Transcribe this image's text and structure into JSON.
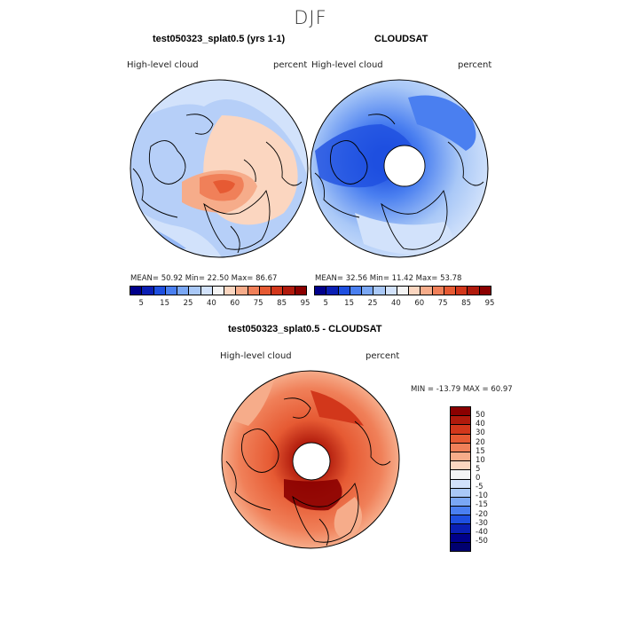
{
  "season": "DJF",
  "panels": [
    {
      "title": "test050323_splat0.5 (yrs 1-1)",
      "variable": "High-level cloud",
      "units": "percent",
      "stats": "MEAN=  50.92  Min=  22.50  Max=  86.67"
    },
    {
      "title": "CLOUDSAT",
      "variable": "High-level cloud",
      "units": "percent",
      "stats": "MEAN=  32.56  Min=  11.42  Max=  53.78"
    },
    {
      "title": "test050323_splat0.5 - CLOUDSAT",
      "variable": "High-level cloud",
      "units": "percent",
      "stats": "MIN = -13.79 MAX =  60.97"
    }
  ],
  "colorbar_abs": {
    "labels": [
      "5",
      "15",
      "25",
      "40",
      "60",
      "75",
      "85",
      "95"
    ],
    "colors": [
      "#00008b",
      "#0a1fb4",
      "#1e4fe0",
      "#4a7ff0",
      "#7aa7f4",
      "#a9c8f7",
      "#d2e2fb",
      "#f4f4f4",
      "#fbd6c0",
      "#f6ac8a",
      "#f08059",
      "#e65a33",
      "#d2371b",
      "#b01a0c",
      "#8b0000"
    ]
  },
  "colorbar_diff": {
    "labels": [
      "50",
      "40",
      "30",
      "20",
      "15",
      "10",
      "5",
      "0",
      "-5",
      "-10",
      "-15",
      "-20",
      "-30",
      "-40",
      "-50"
    ],
    "colors": [
      "#8b0000",
      "#b01a0c",
      "#d2371b",
      "#e65a33",
      "#f08059",
      "#f6ac8a",
      "#fbd6c0",
      "#f4f4f4",
      "#d2e2fb",
      "#a9c8f7",
      "#7aa7f4",
      "#4a7ff0",
      "#1e4fe0",
      "#0a1fb4",
      "#00008b",
      "#000070"
    ]
  }
}
